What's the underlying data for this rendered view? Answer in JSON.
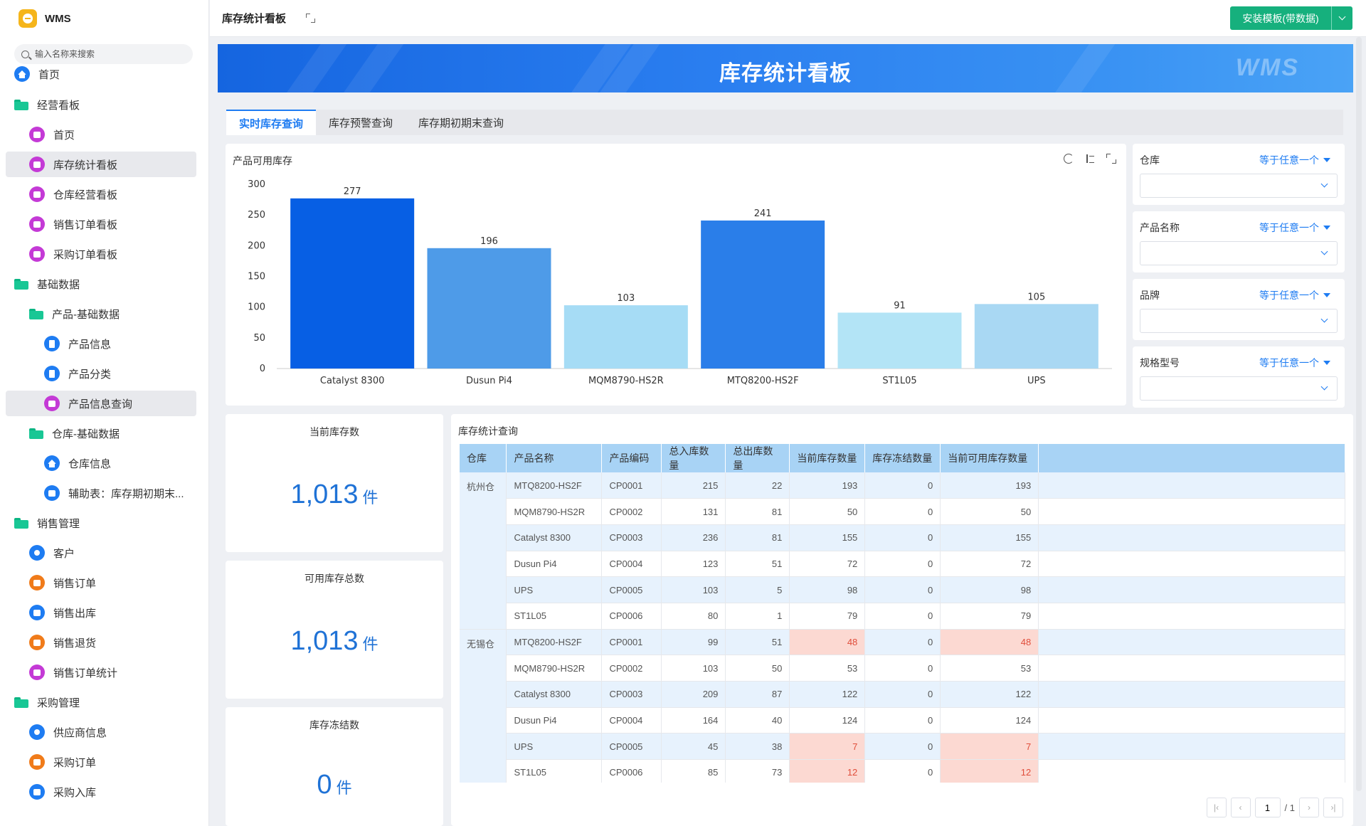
{
  "app": {
    "name": "WMS"
  },
  "sidebar": {
    "search_placeholder": "输入名称来搜索",
    "items": [
      {
        "label": "首页",
        "icon": "home-icon",
        "color": "#1e7cf2",
        "kind": "circle"
      },
      {
        "label": "经营看板",
        "icon": "folder-icon",
        "kind": "folder"
      },
      {
        "label": "首页",
        "icon": "dashboard-icon",
        "color": "#c43ad6",
        "kind": "circle"
      },
      {
        "label": "库存统计看板",
        "icon": "dashboard-icon",
        "color": "#c43ad6",
        "kind": "circle"
      },
      {
        "label": "仓库经营看板",
        "icon": "dashboard-icon",
        "color": "#c43ad6",
        "kind": "circle"
      },
      {
        "label": "销售订单看板",
        "icon": "dashboard-icon",
        "color": "#c43ad6",
        "kind": "circle"
      },
      {
        "label": "采购订单看板",
        "icon": "dashboard-icon",
        "color": "#c43ad6",
        "kind": "circle"
      },
      {
        "label": "基础数据",
        "icon": "folder-icon",
        "kind": "folder"
      },
      {
        "label": "产品-基础数据",
        "icon": "folder-icon",
        "kind": "folder"
      },
      {
        "label": "产品信息",
        "icon": "bookmark-icon",
        "color": "#1e7cf2",
        "kind": "circle"
      },
      {
        "label": "产品分类",
        "icon": "bookmark-icon",
        "color": "#1e7cf2",
        "kind": "circle"
      },
      {
        "label": "产品信息查询",
        "icon": "dashboard-icon",
        "color": "#c43ad6",
        "kind": "circle"
      },
      {
        "label": "仓库-基础数据",
        "icon": "folder-icon",
        "kind": "folder"
      },
      {
        "label": "仓库信息",
        "icon": "home-icon",
        "color": "#1e7cf2",
        "kind": "circle"
      },
      {
        "label": "辅助表：库存期初期末...",
        "icon": "document-icon",
        "color": "#1e7cf2",
        "kind": "circle"
      },
      {
        "label": "销售管理",
        "icon": "folder-icon",
        "kind": "folder"
      },
      {
        "label": "客户",
        "icon": "person-icon",
        "color": "#1e7cf2",
        "kind": "circle"
      },
      {
        "label": "销售订单",
        "icon": "order-icon",
        "color": "#f07b1a",
        "kind": "circle"
      },
      {
        "label": "销售出库",
        "icon": "document-icon",
        "color": "#1e7cf2",
        "kind": "circle"
      },
      {
        "label": "销售退货",
        "icon": "order-icon",
        "color": "#f07b1a",
        "kind": "circle"
      },
      {
        "label": "销售订单统计",
        "icon": "dashboard-icon",
        "color": "#c43ad6",
        "kind": "circle"
      },
      {
        "label": "采购管理",
        "icon": "folder-icon",
        "kind": "folder"
      },
      {
        "label": "供应商信息",
        "icon": "person-icon",
        "color": "#1e7cf2",
        "kind": "circle"
      },
      {
        "label": "采购订单",
        "icon": "order-icon",
        "color": "#f07b1a",
        "kind": "circle"
      },
      {
        "label": "采购入库",
        "icon": "document-icon",
        "color": "#1e7cf2",
        "kind": "circle"
      }
    ]
  },
  "header": {
    "title": "库存统计看板",
    "install_label": "安装模板(带数据)"
  },
  "banner": {
    "title": "库存统计看板",
    "watermark": "WMS"
  },
  "tabs": [
    "实时库存查询",
    "库存预警查询",
    "库存期初期末查询"
  ],
  "chart_card": {
    "title": "产品可用库存"
  },
  "chart_data": {
    "type": "bar",
    "categories": [
      "Catalyst 8300",
      "Dusun Pi4",
      "MQM8790-HS2R",
      "MTQ8200-HS2F",
      "ST1L05",
      "UPS"
    ],
    "values": [
      277,
      196,
      103,
      241,
      91,
      105
    ],
    "colors": [
      "#075fe4",
      "#4e9be8",
      "#a6dcf5",
      "#2a7ee9",
      "#b3e4f6",
      "#a9d8f3"
    ],
    "ylim": [
      0,
      300
    ],
    "yticks": [
      0,
      50,
      100,
      150,
      200,
      250,
      300
    ],
    "data_labels": true,
    "grid": false
  },
  "filters": [
    {
      "label": "仓库",
      "op": "等于任意一个"
    },
    {
      "label": "产品名称",
      "op": "等于任意一个"
    },
    {
      "label": "品牌",
      "op": "等于任意一个"
    },
    {
      "label": "规格型号",
      "op": "等于任意一个"
    }
  ],
  "kpis": [
    {
      "title": "当前库存数",
      "value": "1,013",
      "unit": "件"
    },
    {
      "title": "可用库存总数",
      "value": "1,013",
      "unit": "件"
    },
    {
      "title": "库存冻结数",
      "value": "0",
      "unit": "件"
    }
  ],
  "table": {
    "title": "库存统计查询",
    "columns": [
      "仓库",
      "产品名称",
      "产品编码",
      "总入库数量",
      "总出库数量",
      "当前库存数量",
      "库存冻结数量",
      "当前可用库存数量"
    ],
    "groups": [
      {
        "warehouse": "杭州仓",
        "rows": [
          [
            "MTQ8200-HS2F",
            "CP0001",
            "215",
            "22",
            "193",
            "0",
            "193"
          ],
          [
            "MQM8790-HS2R",
            "CP0002",
            "131",
            "81",
            "50",
            "0",
            "50"
          ],
          [
            "Catalyst 8300",
            "CP0003",
            "236",
            "81",
            "155",
            "0",
            "155"
          ],
          [
            "Dusun Pi4",
            "CP0004",
            "123",
            "51",
            "72",
            "0",
            "72"
          ],
          [
            "UPS",
            "CP0005",
            "103",
            "5",
            "98",
            "0",
            "98"
          ],
          [
            "ST1L05",
            "CP0006",
            "80",
            "1",
            "79",
            "0",
            "79"
          ]
        ]
      },
      {
        "warehouse": "无锡仓",
        "rows": [
          [
            "MTQ8200-HS2F",
            "CP0001",
            "99",
            "51",
            "48",
            "0",
            "48"
          ],
          [
            "MQM8790-HS2R",
            "CP0002",
            "103",
            "50",
            "53",
            "0",
            "53"
          ],
          [
            "Catalyst 8300",
            "CP0003",
            "209",
            "87",
            "122",
            "0",
            "122"
          ],
          [
            "Dusun Pi4",
            "CP0004",
            "164",
            "40",
            "124",
            "0",
            "124"
          ],
          [
            "UPS",
            "CP0005",
            "45",
            "38",
            "7",
            "0",
            "7"
          ],
          [
            "ST1L05",
            "CP0006",
            "85",
            "73",
            "12",
            "0",
            "12"
          ]
        ]
      }
    ],
    "alert_cells": [
      [
        1,
        0
      ],
      [
        1,
        4
      ],
      [
        1,
        5
      ]
    ],
    "pager": {
      "current": "1",
      "total": "/ 1"
    }
  }
}
